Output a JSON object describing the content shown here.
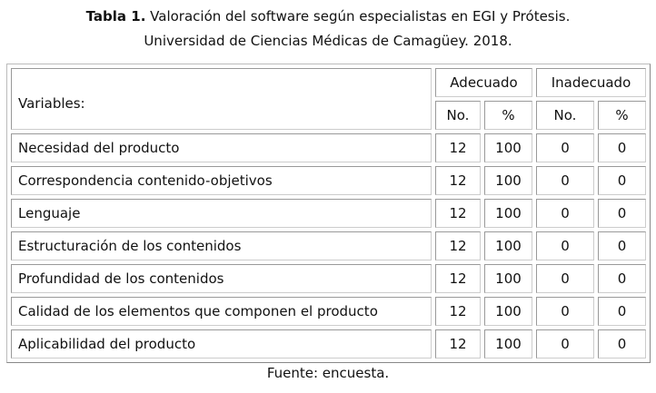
{
  "title": {
    "label": "Tabla 1.",
    "line1": "Valoración del software según especialistas en EGI y Prótesis.",
    "line2": "Universidad de Ciencias Médicas de Camagüey. 2018."
  },
  "table": {
    "variables_header": "Variables:",
    "group_headers": [
      "Adecuado",
      "Inadecuado"
    ],
    "sub_headers": [
      "No.",
      "%",
      "No.",
      "%"
    ],
    "rows": [
      {
        "variable": "Necesidad del producto",
        "values": [
          "12",
          "100",
          "0",
          "0"
        ]
      },
      {
        "variable": "Correspondencia contenido-objetivos",
        "values": [
          "12",
          "100",
          "0",
          "0"
        ]
      },
      {
        "variable": "Lenguaje",
        "values": [
          "12",
          "100",
          "0",
          "0"
        ]
      },
      {
        "variable": "Estructuración de los contenidos",
        "values": [
          "12",
          "100",
          "0",
          "0"
        ]
      },
      {
        "variable": "Profundidad de los contenidos",
        "values": [
          "12",
          "100",
          "0",
          "0"
        ]
      },
      {
        "variable": "Calidad de los elementos que componen el producto",
        "values": [
          "12",
          "100",
          "0",
          "0"
        ]
      },
      {
        "variable": "Aplicabilidad del producto",
        "values": [
          "12",
          "100",
          "0",
          "0"
        ]
      }
    ]
  },
  "source": "Fuente: encuesta."
}
